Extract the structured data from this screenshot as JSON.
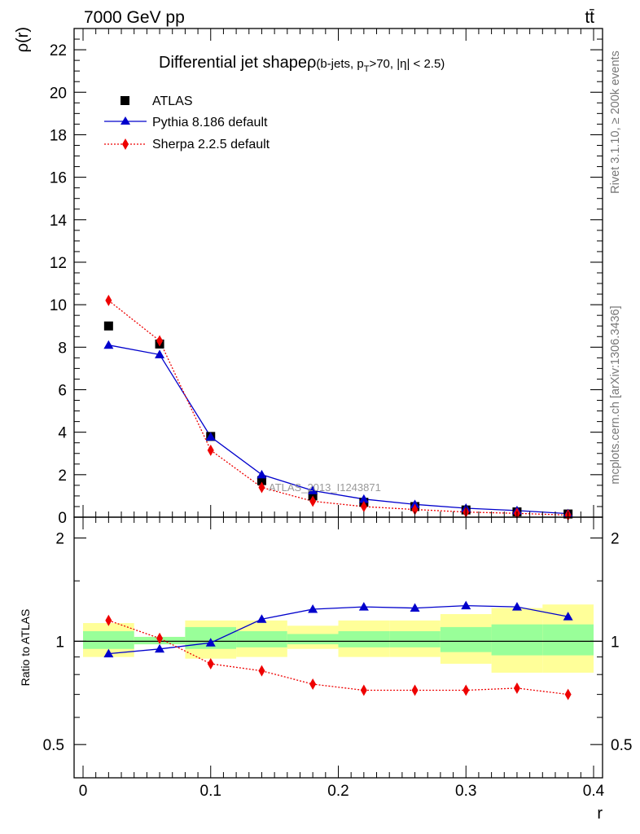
{
  "header": {
    "left_label": "7000 GeV pp",
    "right_label": "tt̄"
  },
  "side_labels": {
    "rivet": "Rivet 3.1.10, ≥ 200k events",
    "mcplots": "mcplots.cern.ch [arXiv:1306.3436]"
  },
  "chart_data": [
    {
      "type": "scatter",
      "title": "Differential jet shapeρ",
      "title_suffix_parts": [
        "(b-jets, p",
        "T",
        ">70, |η| < 2.5)"
      ],
      "watermark": "ATLAS_2013_I1243871",
      "ylabel": "ρ(r)",
      "xlabel": "r",
      "xlim": [
        0,
        0.4
      ],
      "ylim": [
        0,
        23
      ],
      "yticks": [
        0,
        2,
        4,
        6,
        8,
        10,
        12,
        14,
        16,
        18,
        20,
        22
      ],
      "legend_position": "top-left",
      "x": [
        0.02,
        0.06,
        0.1,
        0.14,
        0.18,
        0.22,
        0.26,
        0.3,
        0.34,
        0.38
      ],
      "series": [
        {
          "name": "ATLAS",
          "marker": "square",
          "color": "#000000",
          "values": [
            9.0,
            8.15,
            3.8,
            1.72,
            1.0,
            0.7,
            0.5,
            0.34,
            0.25,
            0.15
          ]
        },
        {
          "name": "Pythia 8.186 default",
          "marker": "triangle",
          "color": "#0000cc",
          "line": "solid",
          "values": [
            8.1,
            7.65,
            3.78,
            2.0,
            1.25,
            0.85,
            0.6,
            0.42,
            0.31,
            0.17
          ]
        },
        {
          "name": "Sherpa 2.2.5 default",
          "marker": "diamond",
          "color": "#ee0000",
          "line": "dotted",
          "values": [
            10.2,
            8.3,
            3.15,
            1.4,
            0.75,
            0.5,
            0.36,
            0.24,
            0.18,
            0.1
          ]
        }
      ]
    },
    {
      "type": "scatter",
      "ylabel": "Ratio to ATLAS",
      "xlabel": "r",
      "xlim": [
        0,
        0.4
      ],
      "ylim": [
        0.4,
        2.3
      ],
      "yticks": [
        0.5,
        1,
        2
      ],
      "ytick_labels": [
        "0.5",
        "1",
        "2"
      ],
      "xticks": [
        0,
        0.1,
        0.2,
        0.3,
        0.4
      ],
      "xtick_labels": [
        "0",
        "0.1",
        "0.2",
        "0.3",
        "0.4"
      ],
      "bins": [
        [
          0,
          0.04
        ],
        [
          0.04,
          0.08
        ],
        [
          0.08,
          0.12
        ],
        [
          0.12,
          0.16
        ],
        [
          0.16,
          0.2
        ],
        [
          0.2,
          0.24
        ],
        [
          0.24,
          0.28
        ],
        [
          0.28,
          0.32
        ],
        [
          0.32,
          0.36
        ],
        [
          0.36,
          0.4
        ]
      ],
      "band_inner": [
        [
          0.95,
          1.07
        ],
        [
          0.98,
          1.03
        ],
        [
          0.95,
          1.1
        ],
        [
          0.96,
          1.07
        ],
        [
          0.98,
          1.05
        ],
        [
          0.96,
          1.07
        ],
        [
          0.96,
          1.07
        ],
        [
          0.93,
          1.1
        ],
        [
          0.91,
          1.12
        ],
        [
          0.91,
          1.12
        ]
      ],
      "band_outer": [
        [
          0.9,
          1.13
        ],
        [
          0.98,
          1.03
        ],
        [
          0.89,
          1.15
        ],
        [
          0.9,
          1.15
        ],
        [
          0.95,
          1.11
        ],
        [
          0.9,
          1.15
        ],
        [
          0.9,
          1.15
        ],
        [
          0.86,
          1.2
        ],
        [
          0.81,
          1.25
        ],
        [
          0.81,
          1.28
        ]
      ],
      "colors": {
        "band_inner": "#99ff99",
        "band_outer": "#ffff99"
      },
      "series": [
        {
          "name": "Pythia 8.186 default",
          "color": "#0000cc",
          "values": [
            0.92,
            0.95,
            0.99,
            1.16,
            1.24,
            1.26,
            1.25,
            1.27,
            1.26,
            1.18
          ]
        },
        {
          "name": "Sherpa 2.2.5 default",
          "color": "#ee0000",
          "values": [
            1.15,
            1.02,
            0.86,
            0.82,
            0.75,
            0.72,
            0.72,
            0.72,
            0.73,
            0.7
          ]
        }
      ]
    }
  ]
}
